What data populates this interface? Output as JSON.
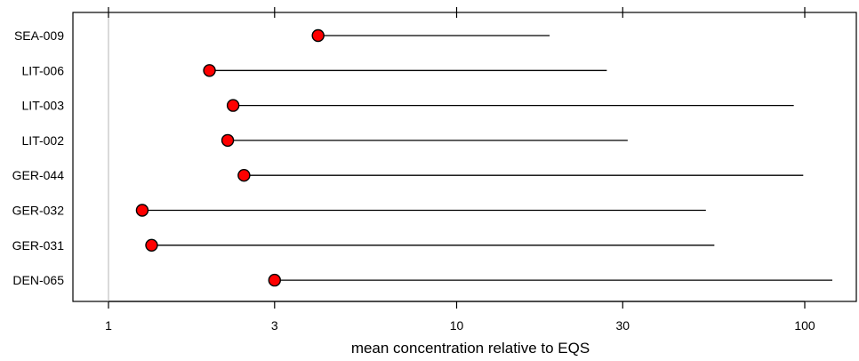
{
  "chart_data": {
    "type": "scatter",
    "title": "",
    "xlabel": "mean concentration relative to EQS",
    "ylabel": "",
    "x_scale": "log",
    "xlim": [
      0.9,
      140
    ],
    "x_ticks": [
      1,
      3,
      10,
      30,
      100
    ],
    "x_tick_labels": [
      "1",
      "3",
      "10",
      "30",
      "100"
    ],
    "reference_line_x": 1,
    "grid": false,
    "stations": [
      {
        "label": "SEA-009",
        "point": 4.0,
        "range_end": 18.5
      },
      {
        "label": "LIT-006",
        "point": 1.95,
        "range_end": 27.0
      },
      {
        "label": "LIT-003",
        "point": 2.28,
        "range_end": 93.0
      },
      {
        "label": "LIT-002",
        "point": 2.2,
        "range_end": 31.0
      },
      {
        "label": "GER-044",
        "point": 2.45,
        "range_end": 99.0
      },
      {
        "label": "GER-032",
        "point": 1.25,
        "range_end": 52.0
      },
      {
        "label": "GER-031",
        "point": 1.33,
        "range_end": 55.0
      },
      {
        "label": "DEN-065",
        "point": 3.0,
        "range_end": 120.0
      }
    ],
    "colors": {
      "point_fill": "#ff0000",
      "point_stroke": "#000000",
      "line": "#000000",
      "reference_line": "#c0c0c0"
    }
  }
}
